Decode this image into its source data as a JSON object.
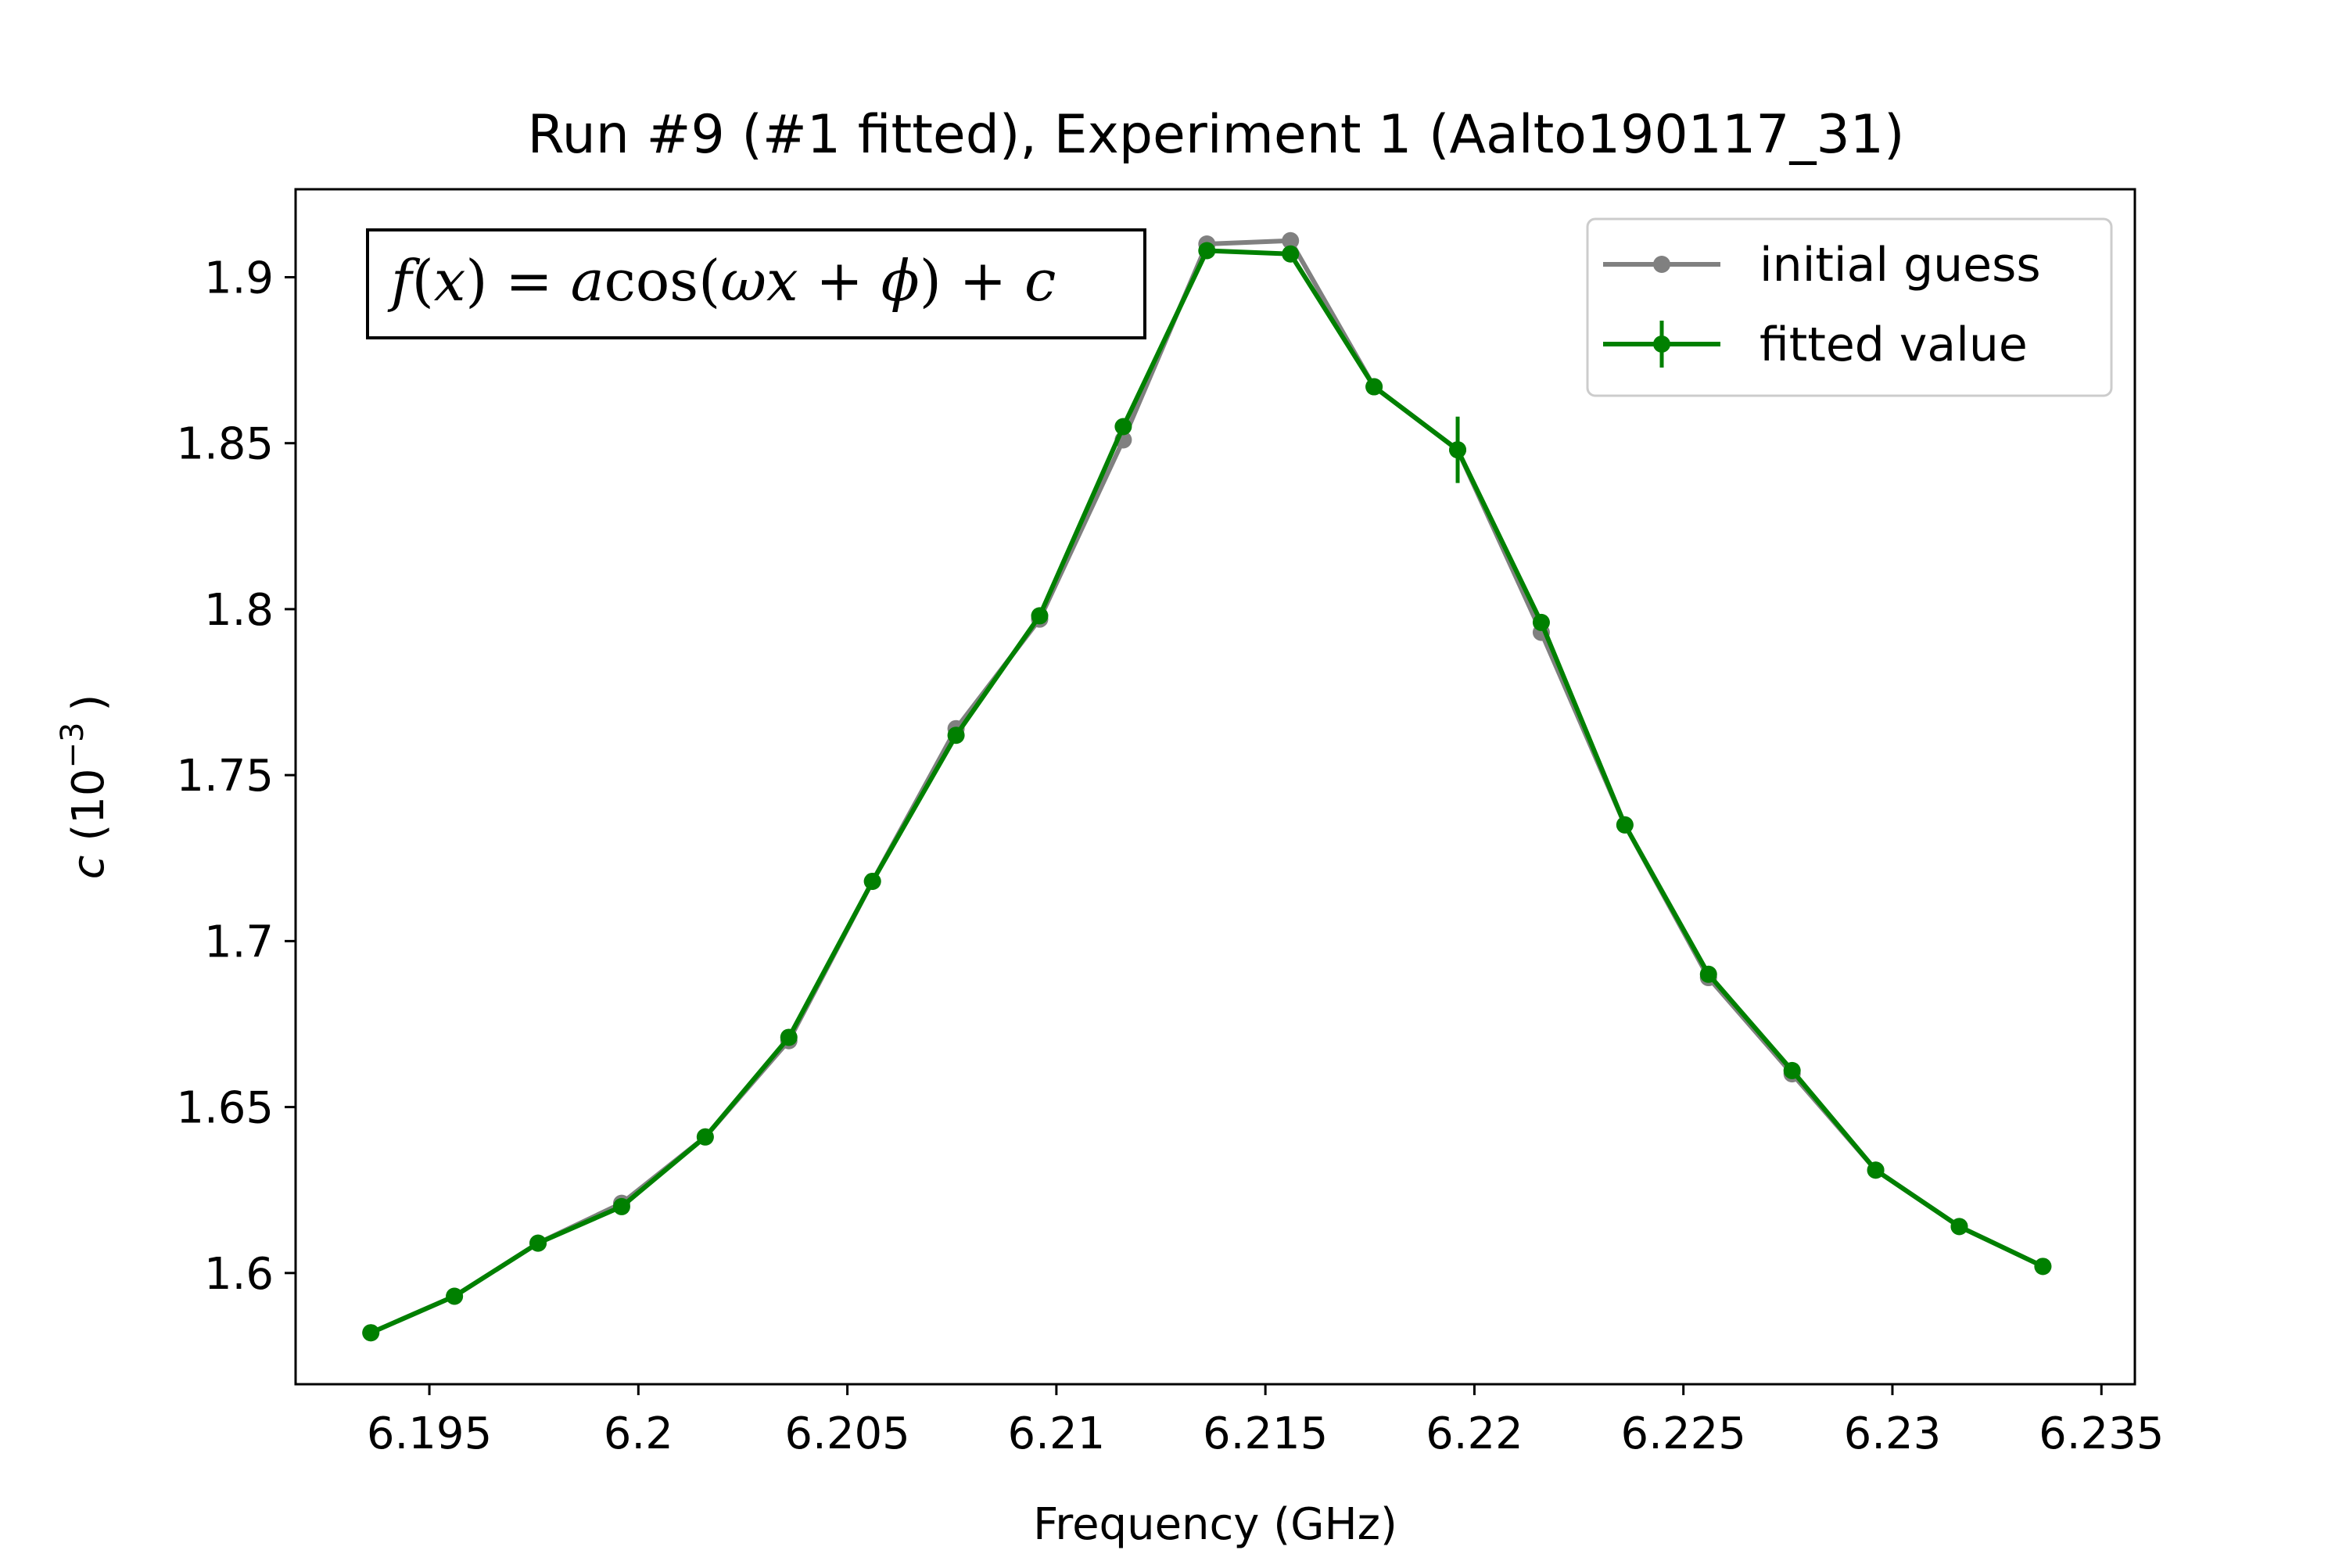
{
  "chart_data": {
    "type": "line",
    "title": "Run #9 (#1 fitted), Experiment 1 (Aalto190117_31)",
    "xlabel": "Frequency (GHz)",
    "ylabel_var": "c",
    "ylabel_unit_base": "(10",
    "ylabel_unit_exp": "−3",
    "ylabel_unit_close": ")",
    "xlim": [
      6.1918,
      6.2358
    ],
    "ylim": [
      1.5665,
      1.9265
    ],
    "x_ticks": [
      6.195,
      6.2,
      6.205,
      6.21,
      6.215,
      6.22,
      6.225,
      6.23,
      6.235
    ],
    "x_tick_labels": [
      "6.195",
      "6.2",
      "6.205",
      "6.21",
      "6.215",
      "6.22",
      "6.225",
      "6.23",
      "6.235"
    ],
    "y_ticks": [
      1.6,
      1.65,
      1.7,
      1.75,
      1.8,
      1.85,
      1.9
    ],
    "y_tick_labels": [
      "1.6",
      "1.65",
      "1.7",
      "1.75",
      "1.8",
      "1.85",
      "1.9"
    ],
    "grid": false,
    "legend_position": "top-right",
    "annotation": {
      "f": "f",
      "open1": "(",
      "x": "x",
      "close1": ")",
      "eq": " = ",
      "a": "a",
      "cos": "cos",
      "open2": "(",
      "omega": "ω",
      "x2": "x",
      "plus1": " + ",
      "phi": "ϕ",
      "close2": ")",
      "plus2": " + ",
      "c": "c"
    },
    "x": [
      6.1936,
      6.1956,
      6.1976,
      6.1996,
      6.2016,
      6.2036,
      6.2056,
      6.2076,
      6.2096,
      6.2116,
      6.2136,
      6.2156,
      6.2176,
      6.2196,
      6.2216,
      6.2236,
      6.2256,
      6.2276,
      6.2296,
      6.2316,
      6.2336
    ],
    "series": [
      {
        "name": "initial guess",
        "color": "#808080",
        "values": [
          1.582,
          1.593,
          1.609,
          1.621,
          1.641,
          1.67,
          1.718,
          1.764,
          1.797,
          1.851,
          1.91,
          1.911,
          1.867,
          1.848,
          1.793,
          1.735,
          1.689,
          1.66,
          1.631,
          1.614,
          1.602
        ]
      },
      {
        "name": "fitted value",
        "color": "#008000",
        "values": [
          1.582,
          1.593,
          1.609,
          1.62,
          1.641,
          1.671,
          1.718,
          1.762,
          1.798,
          1.855,
          1.908,
          1.907,
          1.867,
          1.848,
          1.796,
          1.735,
          1.69,
          1.661,
          1.631,
          1.614,
          1.602
        ],
        "errors": [
          0.0008,
          0.0008,
          0.0008,
          0.0008,
          0.0008,
          0.0008,
          0.0008,
          0.0008,
          0.0008,
          0.0008,
          0.0008,
          0.0008,
          0.0008,
          0.01,
          0.0008,
          0.0008,
          0.0008,
          0.0008,
          0.0008,
          0.0008,
          0.0008
        ]
      }
    ]
  }
}
